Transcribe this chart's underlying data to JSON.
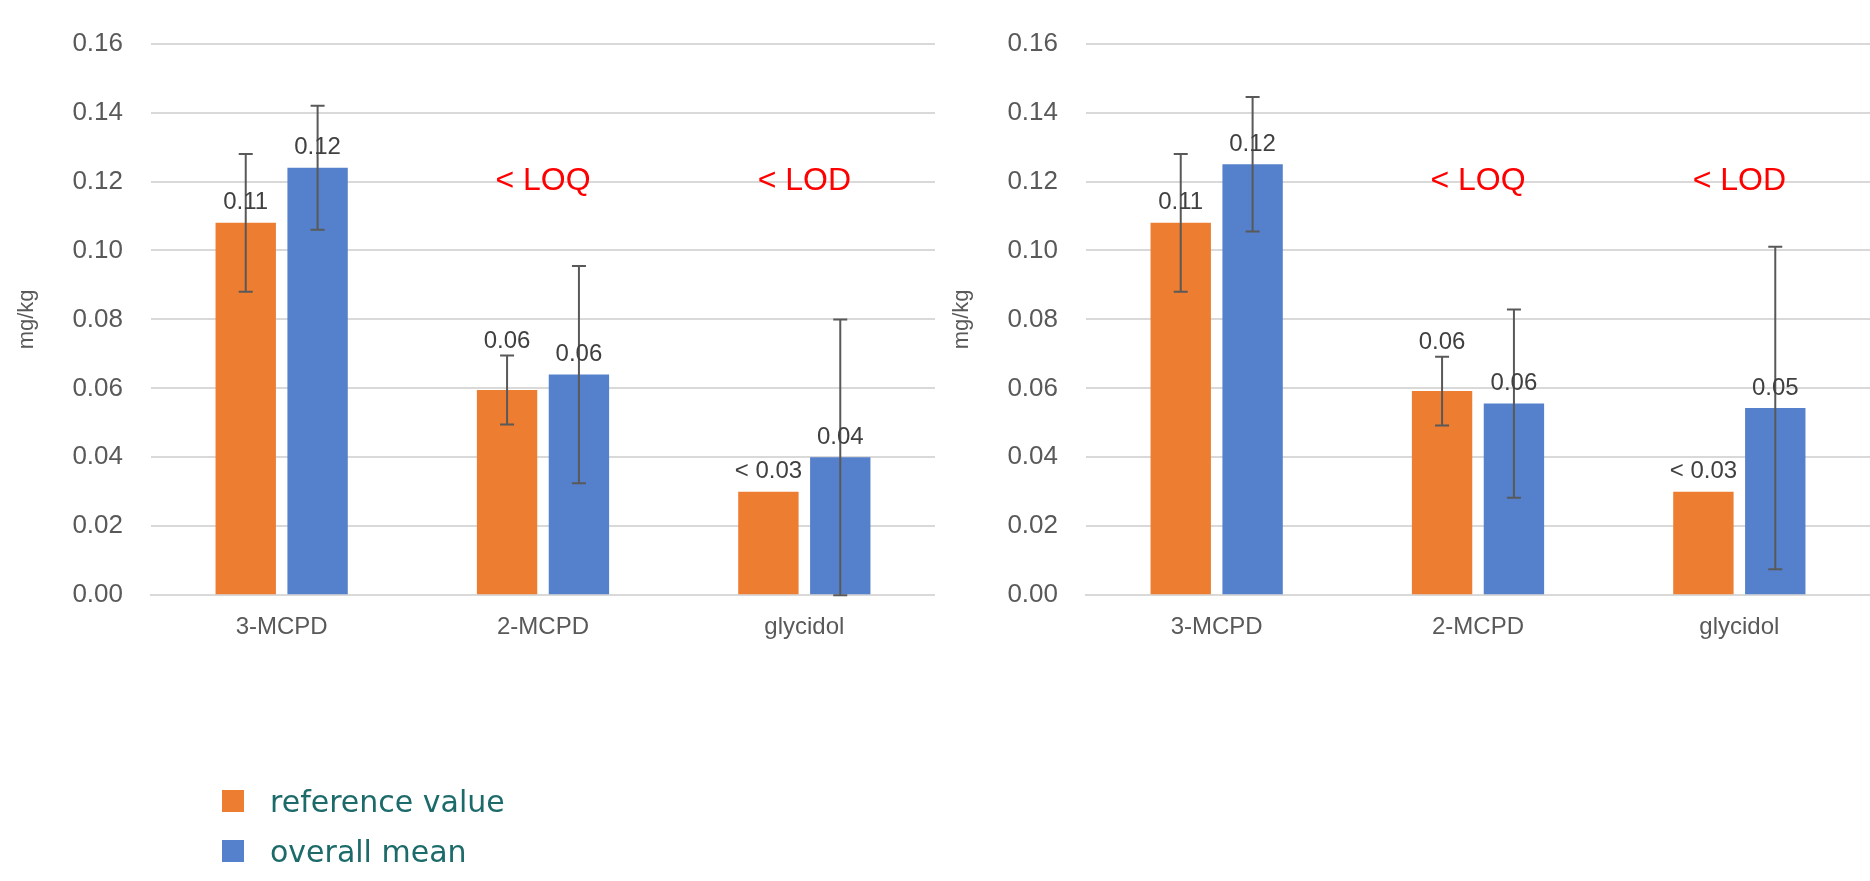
{
  "chart_data": [
    {
      "type": "bar",
      "ylabel": "mg/kg",
      "categories": [
        "3-MCPD",
        "2-MCPD",
        "glycidol"
      ],
      "series": [
        {
          "name": "reference value",
          "color": "#ed7d31",
          "values": [
            0.108,
            0.0595,
            0.03
          ],
          "errors": [
            0.02,
            0.01,
            null
          ],
          "value_labels": [
            "0.11",
            "0.06",
            "< 0.03"
          ]
        },
        {
          "name": "overall mean",
          "color": "#5580cb",
          "values": [
            0.124,
            0.064,
            0.04
          ],
          "errors": [
            0.018,
            0.0315,
            0.04
          ],
          "value_labels": [
            "0.12",
            "0.06",
            "0.04"
          ]
        }
      ],
      "ylim": [
        0,
        0.16
      ],
      "yticks": [
        {
          "value": 0,
          "label": "0.00"
        },
        {
          "value": 0.02,
          "label": "0.02"
        },
        {
          "value": 0.04,
          "label": "0.04"
        },
        {
          "value": 0.06,
          "label": "0.06"
        },
        {
          "value": 0.08,
          "label": "0.08"
        },
        {
          "value": 0.1,
          "label": "0.10"
        },
        {
          "value": 0.12,
          "label": "0.12"
        },
        {
          "value": 0.14,
          "label": "0.14"
        },
        {
          "value": 0.16,
          "label": "0.16"
        }
      ],
      "grid": "y",
      "legend": "bottom left",
      "annotations": [
        "< LOQ",
        "< LOD"
      ]
    },
    {
      "type": "bar",
      "ylabel": "mg/kg",
      "categories": [
        "3-MCPD",
        "2-MCPD",
        "glycidol"
      ],
      "series": [
        {
          "color": "#ed7d31",
          "values": [
            0.108,
            0.0592,
            0.03
          ],
          "errors": [
            0.02,
            0.01,
            null
          ],
          "value_labels": [
            "0.11",
            "0.06",
            "< 0.03"
          ]
        },
        {
          "color": "#5580cb",
          "values": [
            0.125,
            0.0556,
            0.0543
          ],
          "errors": [
            0.0195,
            0.0273,
            0.0468
          ],
          "value_labels": [
            "0.12",
            "0.06",
            "0.05"
          ]
        }
      ],
      "ylim": [
        0,
        0.16
      ],
      "yticks": [
        {
          "value": 0,
          "label": "0.00"
        },
        {
          "value": 0.02,
          "label": "0.02"
        },
        {
          "value": 0.04,
          "label": "0.04"
        },
        {
          "value": 0.06,
          "label": "0.06"
        },
        {
          "value": 0.08,
          "label": "0.08"
        },
        {
          "value": 0.1,
          "label": "0.10"
        },
        {
          "value": 0.12,
          "label": "0.12"
        },
        {
          "value": 0.14,
          "label": "0.14"
        },
        {
          "value": 0.16,
          "label": "0.16"
        }
      ],
      "grid": "y",
      "annotations": [
        "< LOQ",
        "< LOD"
      ]
    }
  ]
}
